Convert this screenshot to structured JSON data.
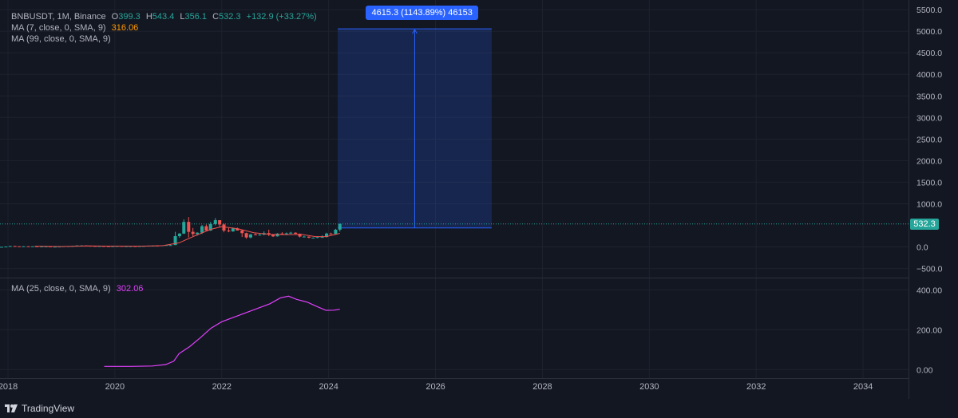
{
  "legend": {
    "symbol": "BNBUSDT, 1M, Binance",
    "open_label": "O",
    "open": "399.3",
    "high_label": "H",
    "high": "543.4",
    "low_label": "L",
    "low": "356.1",
    "close_label": "C",
    "close": "532.3",
    "change": "+132.9 (+33.27%)",
    "ma7_label": "MA (7, close, 0, SMA, 9)",
    "ma7_value": "316.06",
    "ma99_label": "MA (99, close, 0, SMA, 9)",
    "ma25_label": "MA (25, close, 0, SMA, 9)",
    "ma25_value": "302.06"
  },
  "price_tag": "532.3",
  "measure_label": "4615.3 (1143.89%) 46153",
  "footer": {
    "brand": "TradingView"
  },
  "colors": {
    "background": "#131722",
    "up": "#26a69a",
    "down": "#ef5350",
    "ma7": "#ff9800",
    "ma25": "#e040fb",
    "measure": "#2962ff"
  },
  "chart_data": [
    {
      "type": "candlestick",
      "title": "BNBUSDT, 1M, Binance",
      "yticks": [
        "5500.0",
        "5000.0",
        "4500.0",
        "4000.0",
        "3500.0",
        "3000.0",
        "2500.0",
        "2000.0",
        "1500.0",
        "1000.0",
        "0.0",
        "−500.0"
      ],
      "ylim": [
        -600,
        5650
      ],
      "xticks": [
        "2018",
        "2020",
        "2022",
        "2024",
        "2026",
        "2028",
        "2030",
        "2032",
        "2034"
      ],
      "xlim": [
        2017.85,
        2034.85
      ],
      "last_price": 532.3,
      "candles": [
        {
          "t": 2017.79,
          "o": 1.9,
          "h": 2.1,
          "l": 1.5,
          "c": 1.8
        },
        {
          "t": 2017.88,
          "o": 1.8,
          "h": 2.3,
          "l": 1.6,
          "c": 2.2
        },
        {
          "t": 2017.96,
          "o": 2.2,
          "h": 8.6,
          "l": 2.0,
          "c": 8.5
        },
        {
          "t": 2018.04,
          "o": 8.5,
          "h": 24,
          "l": 7,
          "c": 21
        },
        {
          "t": 2018.13,
          "o": 21,
          "h": 25,
          "l": 14,
          "c": 14
        },
        {
          "t": 2018.21,
          "o": 14,
          "h": 15,
          "l": 8,
          "c": 10
        },
        {
          "t": 2018.29,
          "o": 10,
          "h": 16,
          "l": 9,
          "c": 14
        },
        {
          "t": 2018.38,
          "o": 14,
          "h": 15,
          "l": 10,
          "c": 11
        },
        {
          "t": 2018.46,
          "o": 11,
          "h": 13,
          "l": 10,
          "c": 13
        },
        {
          "t": 2018.54,
          "o": 13,
          "h": 13,
          "l": 10,
          "c": 10
        },
        {
          "t": 2018.63,
          "o": 10,
          "h": 11,
          "l": 9,
          "c": 10
        },
        {
          "t": 2018.71,
          "o": 10,
          "h": 11,
          "l": 9,
          "c": 10
        },
        {
          "t": 2018.79,
          "o": 10,
          "h": 10,
          "l": 5,
          "c": 6
        },
        {
          "t": 2018.88,
          "o": 6,
          "h": 7,
          "l": 5,
          "c": 6
        },
        {
          "t": 2018.96,
          "o": 6,
          "h": 9,
          "l": 5,
          "c": 9
        },
        {
          "t": 2019.04,
          "o": 9,
          "h": 16,
          "l": 9,
          "c": 16
        },
        {
          "t": 2019.13,
          "o": 16,
          "h": 19,
          "l": 14,
          "c": 17
        },
        {
          "t": 2019.21,
          "o": 17,
          "h": 25,
          "l": 17,
          "c": 22
        },
        {
          "t": 2019.29,
          "o": 22,
          "h": 38,
          "l": 22,
          "c": 33
        },
        {
          "t": 2019.38,
          "o": 33,
          "h": 40,
          "l": 30,
          "c": 33
        },
        {
          "t": 2019.46,
          "o": 33,
          "h": 33,
          "l": 25,
          "c": 27
        },
        {
          "t": 2019.54,
          "o": 27,
          "h": 29,
          "l": 20,
          "c": 22
        },
        {
          "t": 2019.63,
          "o": 22,
          "h": 23,
          "l": 15,
          "c": 16
        },
        {
          "t": 2019.71,
          "o": 16,
          "h": 22,
          "l": 15,
          "c": 20
        },
        {
          "t": 2019.79,
          "o": 20,
          "h": 21,
          "l": 15,
          "c": 16
        },
        {
          "t": 2019.88,
          "o": 16,
          "h": 16,
          "l": 13,
          "c": 14
        },
        {
          "t": 2019.96,
          "o": 14,
          "h": 20,
          "l": 13,
          "c": 17
        },
        {
          "t": 2020.04,
          "o": 17,
          "h": 27,
          "l": 17,
          "c": 22
        },
        {
          "t": 2020.13,
          "o": 22,
          "h": 22,
          "l": 7,
          "c": 13
        },
        {
          "t": 2020.21,
          "o": 13,
          "h": 18,
          "l": 12,
          "c": 17
        },
        {
          "t": 2020.29,
          "o": 17,
          "h": 18,
          "l": 15,
          "c": 17
        },
        {
          "t": 2020.38,
          "o": 17,
          "h": 17,
          "l": 15,
          "c": 15
        },
        {
          "t": 2020.46,
          "o": 15,
          "h": 20,
          "l": 15,
          "c": 19
        },
        {
          "t": 2020.54,
          "o": 19,
          "h": 24,
          "l": 19,
          "c": 23
        },
        {
          "t": 2020.63,
          "o": 23,
          "h": 33,
          "l": 20,
          "c": 29
        },
        {
          "t": 2020.71,
          "o": 29,
          "h": 32,
          "l": 27,
          "c": 31
        },
        {
          "t": 2020.79,
          "o": 31,
          "h": 31,
          "l": 25,
          "c": 29
        },
        {
          "t": 2020.88,
          "o": 29,
          "h": 39,
          "l": 28,
          "c": 37
        },
        {
          "t": 2020.96,
          "o": 37,
          "h": 47,
          "l": 35,
          "c": 44
        },
        {
          "t": 2021.04,
          "o": 44,
          "h": 58,
          "l": 36,
          "c": 44
        },
        {
          "t": 2021.13,
          "o": 44,
          "h": 350,
          "l": 44,
          "c": 250
        },
        {
          "t": 2021.21,
          "o": 250,
          "h": 320,
          "l": 215,
          "c": 310
        },
        {
          "t": 2021.29,
          "o": 310,
          "h": 640,
          "l": 300,
          "c": 580
        },
        {
          "t": 2021.38,
          "o": 580,
          "h": 690,
          "l": 220,
          "c": 350
        },
        {
          "t": 2021.46,
          "o": 350,
          "h": 440,
          "l": 250,
          "c": 300
        },
        {
          "t": 2021.54,
          "o": 300,
          "h": 340,
          "l": 260,
          "c": 330
        },
        {
          "t": 2021.63,
          "o": 330,
          "h": 510,
          "l": 300,
          "c": 480
        },
        {
          "t": 2021.71,
          "o": 480,
          "h": 520,
          "l": 380,
          "c": 380
        },
        {
          "t": 2021.79,
          "o": 380,
          "h": 580,
          "l": 370,
          "c": 530
        },
        {
          "t": 2021.88,
          "o": 530,
          "h": 670,
          "l": 500,
          "c": 620
        },
        {
          "t": 2021.96,
          "o": 620,
          "h": 600,
          "l": 450,
          "c": 520
        },
        {
          "t": 2022.04,
          "o": 520,
          "h": 540,
          "l": 340,
          "c": 380
        },
        {
          "t": 2022.13,
          "o": 380,
          "h": 440,
          "l": 340,
          "c": 360
        },
        {
          "t": 2022.21,
          "o": 360,
          "h": 450,
          "l": 350,
          "c": 430
        },
        {
          "t": 2022.29,
          "o": 430,
          "h": 450,
          "l": 380,
          "c": 380
        },
        {
          "t": 2022.38,
          "o": 380,
          "h": 400,
          "l": 230,
          "c": 320
        },
        {
          "t": 2022.46,
          "o": 320,
          "h": 330,
          "l": 190,
          "c": 220
        },
        {
          "t": 2022.54,
          "o": 220,
          "h": 300,
          "l": 200,
          "c": 290
        },
        {
          "t": 2022.63,
          "o": 290,
          "h": 330,
          "l": 270,
          "c": 280
        },
        {
          "t": 2022.71,
          "o": 280,
          "h": 300,
          "l": 260,
          "c": 285
        },
        {
          "t": 2022.79,
          "o": 285,
          "h": 360,
          "l": 270,
          "c": 320
        },
        {
          "t": 2022.88,
          "o": 320,
          "h": 400,
          "l": 250,
          "c": 290
        },
        {
          "t": 2022.96,
          "o": 290,
          "h": 300,
          "l": 230,
          "c": 245
        },
        {
          "t": 2023.04,
          "o": 245,
          "h": 320,
          "l": 240,
          "c": 310
        },
        {
          "t": 2023.13,
          "o": 310,
          "h": 340,
          "l": 280,
          "c": 300
        },
        {
          "t": 2023.21,
          "o": 300,
          "h": 335,
          "l": 280,
          "c": 315
        },
        {
          "t": 2023.29,
          "o": 315,
          "h": 350,
          "l": 300,
          "c": 330
        },
        {
          "t": 2023.38,
          "o": 330,
          "h": 340,
          "l": 300,
          "c": 305
        },
        {
          "t": 2023.46,
          "o": 305,
          "h": 310,
          "l": 220,
          "c": 240
        },
        {
          "t": 2023.54,
          "o": 240,
          "h": 260,
          "l": 225,
          "c": 240
        },
        {
          "t": 2023.63,
          "o": 240,
          "h": 245,
          "l": 200,
          "c": 215
        },
        {
          "t": 2023.71,
          "o": 215,
          "h": 220,
          "l": 200,
          "c": 215
        },
        {
          "t": 2023.79,
          "o": 215,
          "h": 240,
          "l": 205,
          "c": 230
        },
        {
          "t": 2023.88,
          "o": 230,
          "h": 270,
          "l": 220,
          "c": 230
        },
        {
          "t": 2023.96,
          "o": 230,
          "h": 330,
          "l": 220,
          "c": 310
        },
        {
          "t": 2024.04,
          "o": 310,
          "h": 330,
          "l": 290,
          "c": 300
        },
        {
          "t": 2024.13,
          "o": 300,
          "h": 420,
          "l": 290,
          "c": 399.3
        },
        {
          "t": 2024.21,
          "o": 399.3,
          "h": 543.4,
          "l": 356.1,
          "c": 532.3
        }
      ],
      "ma7": [
        [
          2018.5,
          14
        ],
        [
          2019.0,
          9
        ],
        [
          2019.5,
          24
        ],
        [
          2020.0,
          18
        ],
        [
          2020.5,
          18
        ],
        [
          2020.9,
          30
        ],
        [
          2021.2,
          95
        ],
        [
          2021.5,
          260
        ],
        [
          2021.8,
          410
        ],
        [
          2022.0,
          470
        ],
        [
          2022.3,
          420
        ],
        [
          2022.6,
          330
        ],
        [
          2022.9,
          290
        ],
        [
          2023.2,
          285
        ],
        [
          2023.5,
          290
        ],
        [
          2023.75,
          240
        ],
        [
          2023.95,
          240
        ],
        [
          2024.13,
          290
        ],
        [
          2024.21,
          316.06
        ]
      ],
      "measure": {
        "x_start": 2024.17,
        "x_end": 2027.05,
        "y_start": 440,
        "y_end": 5055,
        "label": "4615.3 (1143.89%) 46153"
      }
    },
    {
      "type": "line",
      "title": "MA (25, close, 0, SMA, 9)",
      "yticks": [
        "400.00",
        "200.00",
        "0.00"
      ],
      "ylim": [
        -35,
        445
      ],
      "xlim": [
        2017.85,
        2034.85
      ],
      "series": [
        {
          "name": "MA (25, close, 0, SMA, 9)",
          "points": [
            [
              2019.8,
              16
            ],
            [
              2020.3,
              16
            ],
            [
              2020.7,
              18
            ],
            [
              2020.95,
              25
            ],
            [
              2021.1,
              42
            ],
            [
              2021.2,
              80
            ],
            [
              2021.4,
              115
            ],
            [
              2021.6,
              160
            ],
            [
              2021.8,
              208
            ],
            [
              2022.0,
              240
            ],
            [
              2022.3,
              270
            ],
            [
              2022.6,
              300
            ],
            [
              2022.9,
              330
            ],
            [
              2023.1,
              360
            ],
            [
              2023.25,
              368
            ],
            [
              2023.4,
              352
            ],
            [
              2023.6,
              338
            ],
            [
              2023.8,
              314
            ],
            [
              2023.95,
              297
            ],
            [
              2024.1,
              298
            ],
            [
              2024.21,
              302.06
            ]
          ]
        }
      ]
    }
  ]
}
